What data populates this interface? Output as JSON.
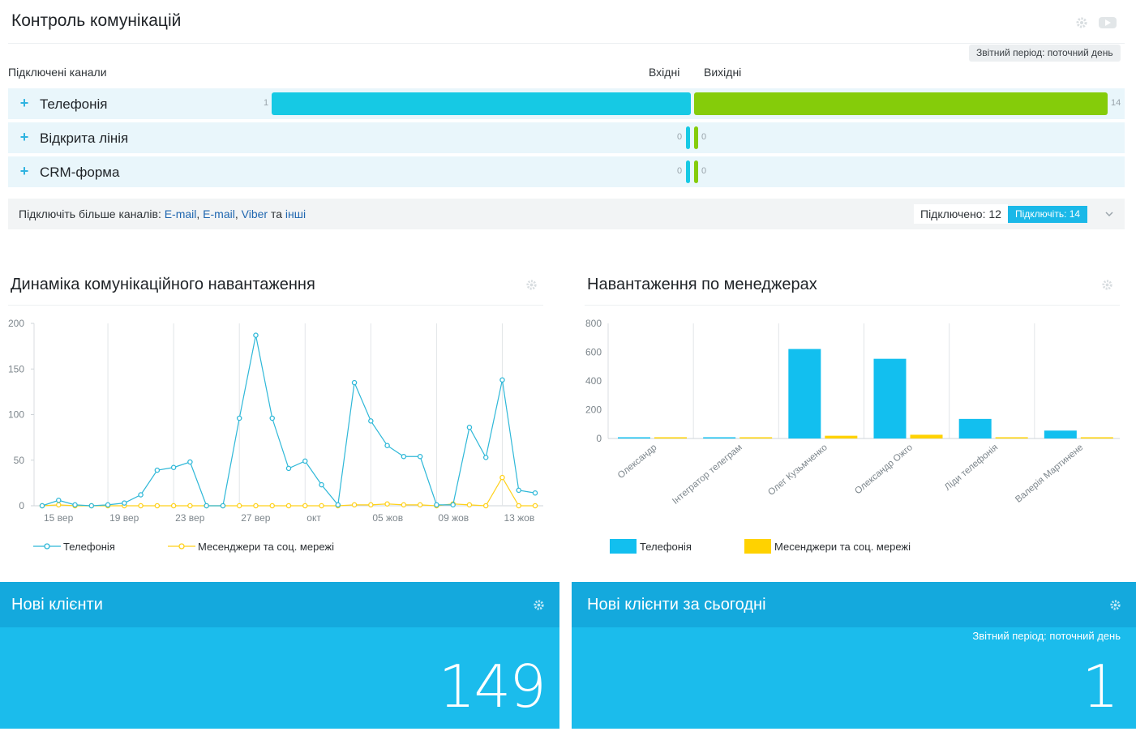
{
  "header": {
    "title": "Контроль комунікацій",
    "report_period": "Звітний період: поточний день"
  },
  "channels": {
    "connected_label": "Підключені канали",
    "incoming_label": "Вхідні",
    "outgoing_label": "Вихідні",
    "rows": [
      {
        "name": "Телефонія",
        "incoming": 1,
        "outgoing": 14
      },
      {
        "name": "Відкрита лінія",
        "incoming": 0,
        "outgoing": 0
      },
      {
        "name": "CRM-форма",
        "incoming": 0,
        "outgoing": 0
      }
    ],
    "more": {
      "prefix": "Підключіть більше каналів:",
      "link1": "E-mail",
      "link2": "E-mail",
      "link3": "Viber",
      "and": "та",
      "link4": "інші",
      "connected": "Підключено: 12",
      "connect_button": "Підключіть: 14"
    }
  },
  "dynamics": {
    "title": "Динаміка комунікаційного навантаження",
    "legend_phone": "Телефонія",
    "legend_msg": "Месенджери та соц. мережі"
  },
  "managers": {
    "title": "Навантаження по менеджерах",
    "legend_phone": "Телефонія",
    "legend_msg": "Месенджери та соц. мережі"
  },
  "tiles": {
    "new_clients": {
      "title": "Нові клієнти",
      "value": "149"
    },
    "new_clients_today": {
      "title": "Нові клієнти за сьогодні",
      "period": "Звітний період: поточний день",
      "value": "1"
    }
  },
  "colors": {
    "phone": "#2fb8d8",
    "messengers": "#ffd11a",
    "bar_phone": "#12bfef",
    "bar_msg": "#ffd200",
    "incoming": "#16c9e4",
    "outgoing": "#85cc0a"
  },
  "chart_data": [
    {
      "type": "line",
      "title": "Динаміка комунікаційного навантаження",
      "ylim": [
        0,
        200
      ],
      "yticks": [
        0,
        50,
        100,
        150,
        200
      ],
      "x_tick_labels": [
        "15 вер",
        "19 вер",
        "23 вер",
        "27 вер",
        "окт",
        "05 жов",
        "09 жов",
        "13 жов"
      ],
      "grid": true,
      "legend_position": "bottom-left",
      "series": [
        {
          "name": "Телефонія",
          "values": [
            0,
            6,
            1,
            0,
            1,
            3,
            12,
            39,
            42,
            48,
            0,
            0,
            96,
            187,
            96,
            41,
            49,
            23,
            1,
            135,
            93,
            66,
            54,
            54,
            1,
            1,
            86,
            53,
            138,
            17,
            14
          ]
        },
        {
          "name": "Месенджери та соц. мережі",
          "values": [
            0,
            1,
            0,
            0,
            0,
            0,
            0,
            0,
            0,
            0,
            0,
            0,
            0,
            0,
            0,
            0,
            0,
            0,
            0,
            1,
            1,
            2,
            1,
            1,
            0,
            2,
            1,
            0,
            31,
            0,
            0
          ]
        }
      ]
    },
    {
      "type": "bar",
      "title": "Навантаження по менеджерах",
      "ylim": [
        0,
        800
      ],
      "yticks": [
        0,
        200,
        400,
        600,
        800
      ],
      "categories": [
        "Олександр",
        "Інтегратор телеграм",
        "Олег Кузьмченко",
        "Олександр Ожго",
        "Ліди телефонія",
        "Валерія Мартинене"
      ],
      "grid": true,
      "legend_position": "bottom-left",
      "series": [
        {
          "name": "Телефонія",
          "values": [
            3,
            2,
            622,
            554,
            136,
            55
          ]
        },
        {
          "name": "Месенджери та соц. мережі",
          "values": [
            1,
            1,
            19,
            26,
            2,
            1
          ]
        }
      ]
    }
  ]
}
